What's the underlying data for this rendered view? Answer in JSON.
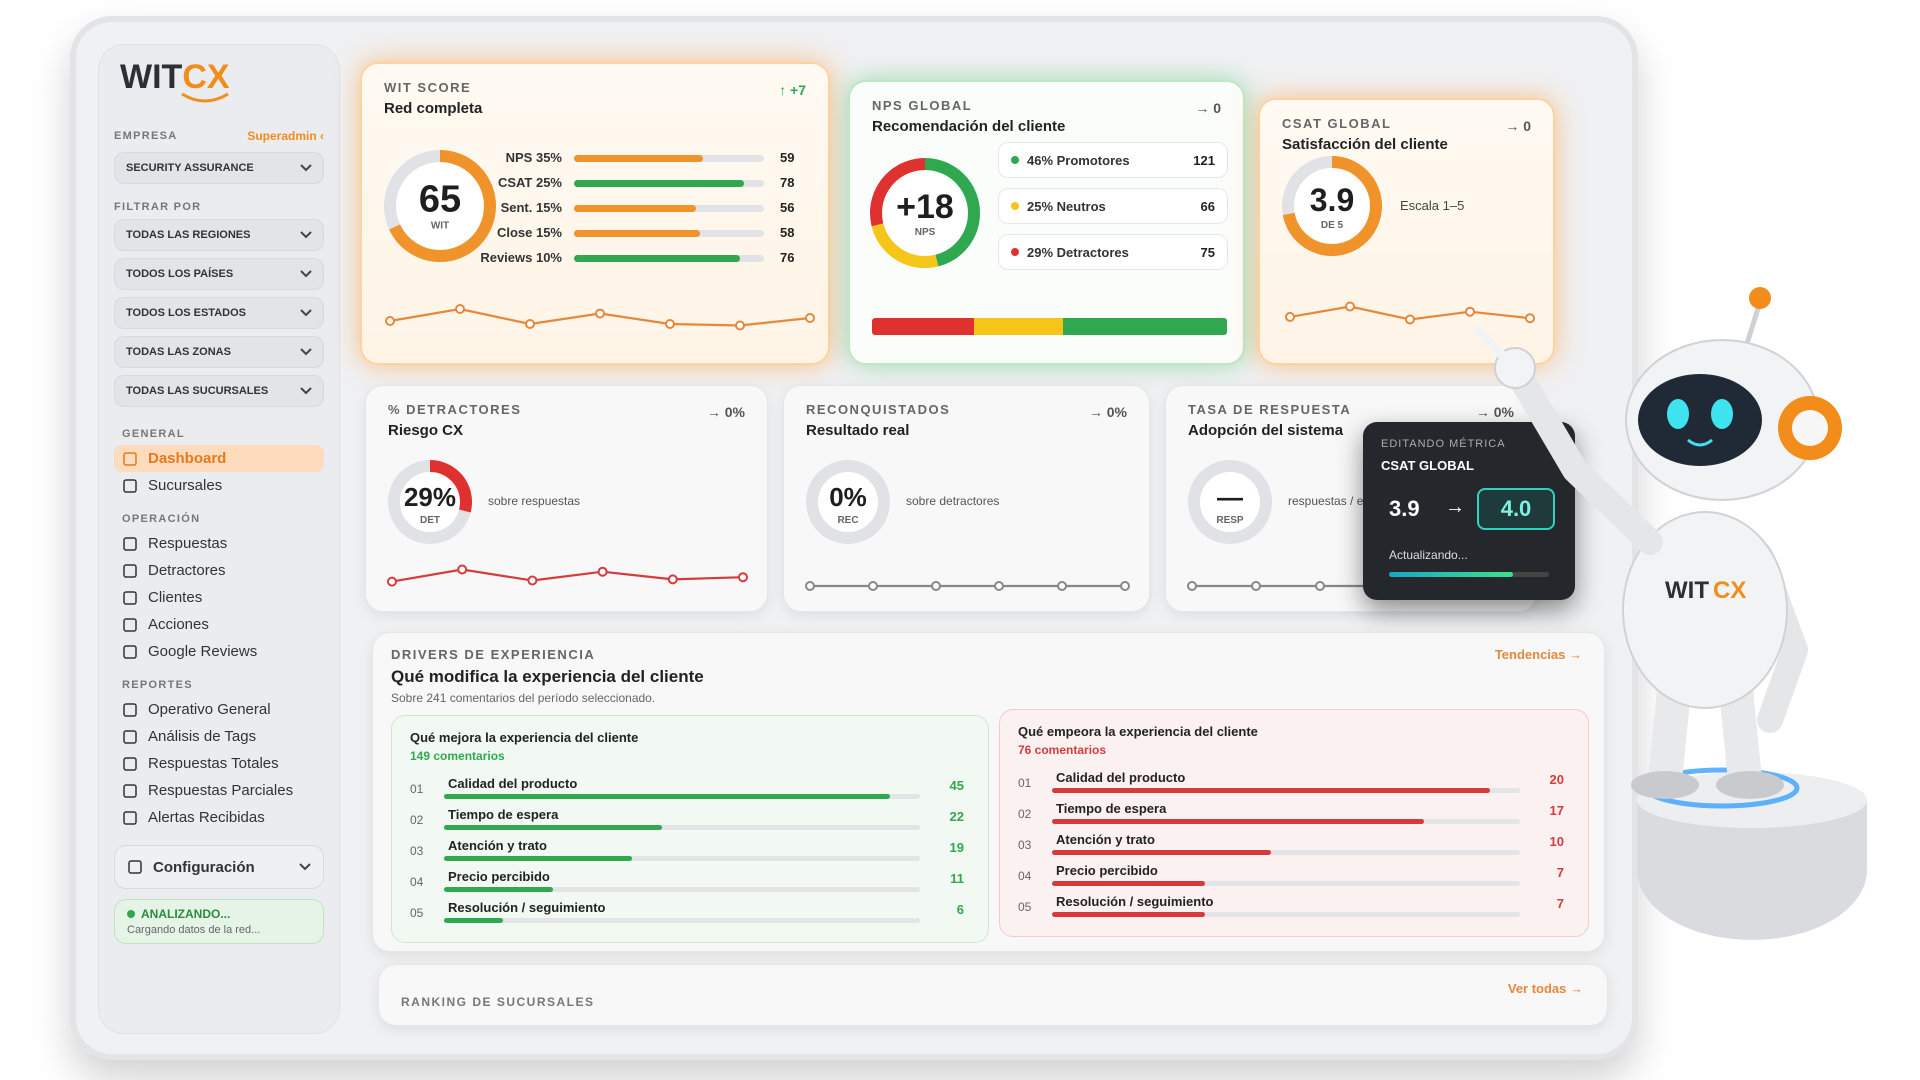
{
  "sidebar": {
    "logo": {
      "wit": "WIT",
      "cx": "CX"
    },
    "company_label": "EMPRESA",
    "role": "Superadmin ‹",
    "company": "SECURITY ASSURANCE",
    "filter_label": "FILTRAR POR",
    "filters": [
      "TODAS LAS REGIONES",
      "TODOS LOS PAÍSES",
      "TODOS LOS ESTADOS",
      "TODAS LAS ZONAS",
      "TODAS LAS SUCURSALES"
    ],
    "sections": [
      {
        "title": "GENERAL",
        "items": [
          "Dashboard",
          "Sucursales"
        ]
      },
      {
        "title": "OPERACIÓN",
        "items": [
          "Respuestas",
          "Detractores",
          "Clientes",
          "Acciones",
          "Google Reviews"
        ]
      },
      {
        "title": "REPORTES",
        "items": [
          "Operativo General",
          "Análisis de Tags",
          "Respuestas Totales",
          "Respuestas Parciales",
          "Alertas Recibidas"
        ]
      }
    ],
    "settings": "Configuración",
    "status": {
      "title": "ANALIZANDO...",
      "text": "Cargando datos de la red..."
    }
  },
  "wit_score": {
    "label": "WIT SCORE",
    "title": "Red completa",
    "delta": "↑ +7",
    "score": 65,
    "score_label": "WIT",
    "rows": [
      {
        "label": "NPS 35%",
        "value": 59,
        "color": "#f0932b"
      },
      {
        "label": "CSAT 25%",
        "value": 78,
        "color": "#2fa84f"
      },
      {
        "label": "Sent. 15%",
        "value": 56,
        "color": "#f0932b"
      },
      {
        "label": "Close 15%",
        "value": 58,
        "color": "#f0932b"
      },
      {
        "label": "Reviews 10%",
        "value": 76,
        "color": "#2fa84f"
      }
    ]
  },
  "nps_global": {
    "label": "NPS GLOBAL",
    "title": "Recomendación del cliente",
    "delta": "→ 0",
    "score": "+18",
    "score_label": "NPS",
    "rows": [
      {
        "label": "46% Promotores",
        "value": 121,
        "color": "#2fa84f"
      },
      {
        "label": "25% Neutros",
        "value": 66,
        "color": "#f5c518"
      },
      {
        "label": "29% Detractores",
        "value": 75,
        "color": "#e03131"
      }
    ]
  },
  "csat_global": {
    "label": "CSAT GLOBAL",
    "title": "Satisfacción del cliente",
    "delta": "→ 0",
    "score": 3.9,
    "score_label": "DE 5",
    "scale": "Escala 1–5"
  },
  "kpis": [
    {
      "label": "% DETRACTORES",
      "title": "Riesgo CX",
      "delta": "→ 0%",
      "score": "29%",
      "score_label": "DET",
      "note": "sobre respuestas"
    },
    {
      "label": "RECONQUISTADOS",
      "title": "Resultado real",
      "delta": "→ 0%",
      "score": "0%",
      "score_label": "REC",
      "note": "sobre detractores"
    },
    {
      "label": "TASA DE RESPUESTA",
      "title": "Adopción del sistema",
      "delta": "→ 0%",
      "score": "—",
      "score_label": "RESP",
      "note": "respuestas / envíos"
    }
  ],
  "metric_editor": {
    "label": "EDITANDO MÉTRICA",
    "metric": "CSAT GLOBAL",
    "from": 3.9,
    "arrow": "→",
    "to": "4.0",
    "status": "Actualizando..."
  },
  "drivers": {
    "label": "DRIVERS DE EXPERIENCIA",
    "title": "Qué modifica la experiencia del cliente",
    "subtitle": "Sobre 241 comentarios del período seleccionado.",
    "link": "Tendencias →",
    "improve": {
      "title": "Qué mejora la experiencia del cliente",
      "count": "149 comentarios",
      "color": "#2fa84f",
      "rows": [
        {
          "rank": "01",
          "label": "Calidad del producto",
          "value": 45
        },
        {
          "rank": "02",
          "label": "Tiempo de espera",
          "value": 22
        },
        {
          "rank": "03",
          "label": "Atención y trato",
          "value": 19
        },
        {
          "rank": "04",
          "label": "Precio percibido",
          "value": 11
        },
        {
          "rank": "05",
          "label": "Resolución / seguimiento",
          "value": 6
        }
      ]
    },
    "worsen": {
      "title": "Qué empeora la experiencia del cliente",
      "count": "76 comentarios",
      "color": "#d63a3a",
      "rows": [
        {
          "rank": "01",
          "label": "Calidad del producto",
          "value": 20
        },
        {
          "rank": "02",
          "label": "Tiempo de espera",
          "value": 17
        },
        {
          "rank": "03",
          "label": "Atención y trato",
          "value": 10
        },
        {
          "rank": "04",
          "label": "Precio percibido",
          "value": 7
        },
        {
          "rank": "05",
          "label": "Resolución / seguimiento",
          "value": 7
        }
      ]
    }
  },
  "ranking": {
    "title": "RANKING DE SUCURSALES",
    "link": "Ver todas →"
  },
  "robot": {
    "logo": {
      "wit": "WIT",
      "cx": "CX"
    }
  }
}
